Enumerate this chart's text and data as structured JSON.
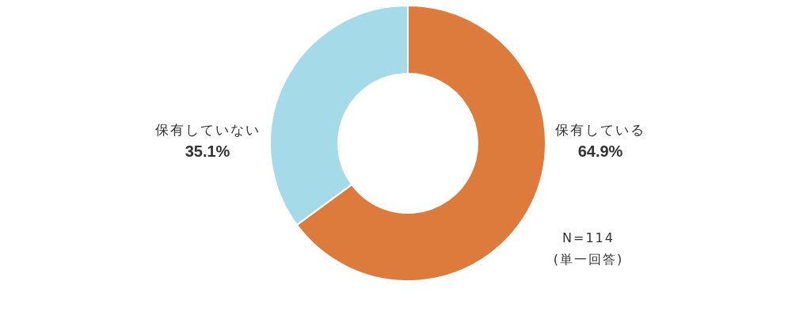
{
  "chart_data": {
    "type": "donut",
    "categories": [
      "保有している",
      "保有していない"
    ],
    "values": [
      64.9,
      35.1
    ],
    "value_labels": [
      "64.9%",
      "35.1%"
    ],
    "colors": [
      "#dd7b3c",
      "#a5dbe8"
    ],
    "annotations": [
      "N=114",
      "(単一回答)"
    ]
  }
}
